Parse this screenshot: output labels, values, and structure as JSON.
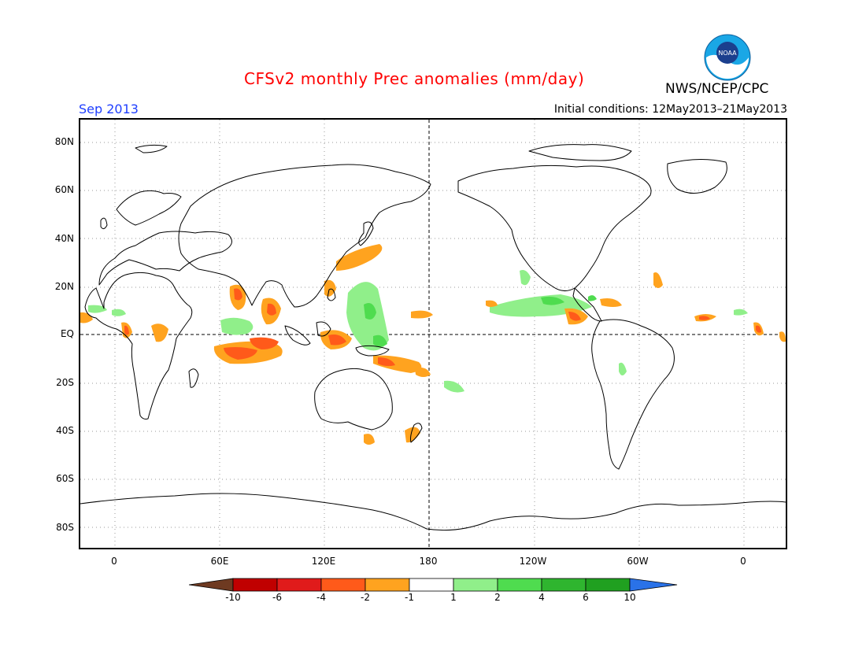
{
  "title": "CFSv2 monthly Prec anomalies (mm/day)",
  "agency": "NWS/NCEP/CPC",
  "period": "Sep 2013",
  "initial_conditions": "Initial conditions: 12May2013–21May2013",
  "logo_text": "NOAA",
  "colors": {
    "title": "#ff0000",
    "period": "#1f3fff",
    "land_outline": "#000000"
  },
  "lat_labels": [
    "80N",
    "60N",
    "40N",
    "20N",
    "EQ",
    "20S",
    "40S",
    "60S",
    "80S"
  ],
  "lon_labels": [
    "0",
    "60E",
    "120E",
    "180",
    "120W",
    "60W",
    "0"
  ],
  "colorbar": {
    "labels": [
      "-10",
      "-6",
      "-4",
      "-2",
      "-1",
      "1",
      "2",
      "4",
      "6",
      "10"
    ],
    "colors": [
      "#6e3a21",
      "#c00000",
      "#e01b1b",
      "#ff5a1a",
      "#ffa31f",
      "#ffffff",
      "#90ef8a",
      "#4fdc4f",
      "#2fb52f",
      "#20a020",
      "#2a72e8"
    ]
  },
  "anomaly_regions": [
    {
      "name": "arabian-sea-dry",
      "category": "-2",
      "color": "#ffa31f"
    },
    {
      "name": "bay-of-bengal-dry",
      "category": "-4",
      "color": "#ff5a1a"
    },
    {
      "name": "indian-ocean-south-dry",
      "category": "-4",
      "color": "#ff5a1a"
    },
    {
      "name": "west-pacific-wet",
      "category": "2",
      "color": "#90ef8a"
    },
    {
      "name": "east-pacific-wet",
      "category": "2",
      "color": "#90ef8a"
    },
    {
      "name": "central-america-dry",
      "category": "-4",
      "color": "#ff5a1a"
    },
    {
      "name": "maritime-continent-dry",
      "category": "-4",
      "color": "#ff5a1a"
    }
  ]
}
